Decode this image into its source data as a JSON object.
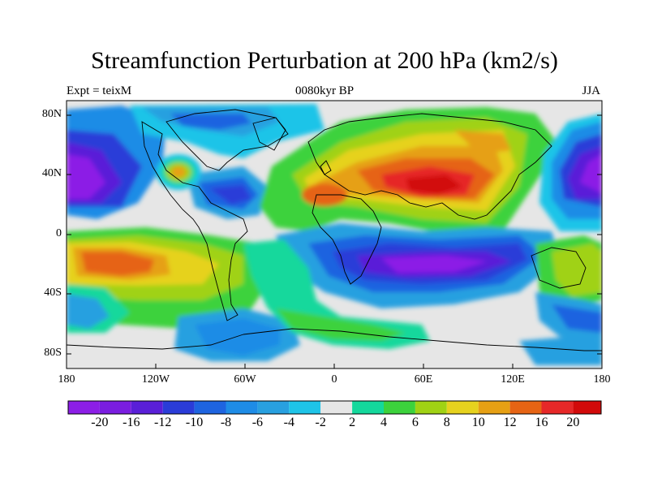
{
  "header": {
    "title": "Streamfunction Perturbation at 200 hPa (km2/s)",
    "left_label": "Expt = teixM",
    "center_label": "0080kyr BP",
    "right_label": "JJA"
  },
  "axes": {
    "lat_ticks": [
      "80N",
      "40N",
      "0",
      "40S",
      "80S"
    ],
    "lon_ticks": [
      "180",
      "120W",
      "60W",
      "0",
      "60E",
      "120E",
      "180"
    ]
  },
  "colorbar": {
    "labels": [
      "-20",
      "-16",
      "-12",
      "-10",
      "-8",
      "-6",
      "-4",
      "-2",
      "2",
      "4",
      "6",
      "8",
      "10",
      "12",
      "16",
      "20"
    ],
    "colors": [
      "#8c1ee6",
      "#7a1de0",
      "#5a1fd8",
      "#2a3cd8",
      "#1e64e0",
      "#1e8ce6",
      "#28a0e0",
      "#1ec4e8",
      "#e6e6e6",
      "#14d89c",
      "#3cd23c",
      "#a0d214",
      "#e6d21e",
      "#e6a014",
      "#e66414",
      "#e62828",
      "#d20a0a"
    ]
  },
  "colors": {
    "neutral": "#e6e6e6",
    "coast": "#000000"
  }
}
